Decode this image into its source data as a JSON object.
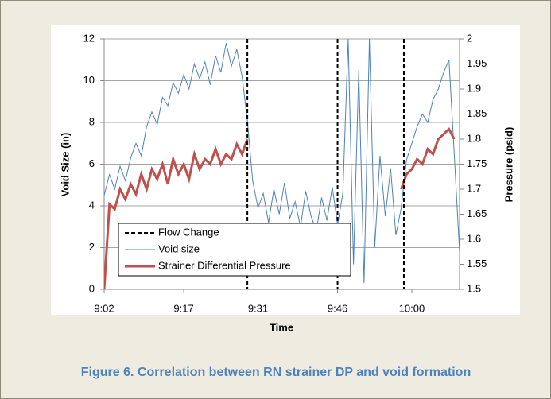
{
  "chart_data": {
    "type": "line",
    "caption": "Figure 6. Correlation between RN strainer DP and void formation",
    "x_label": "Time",
    "y_label": "Void Size (in)",
    "y2_label": "Pressure (psid)",
    "xlim": [
      542,
      609
    ],
    "xticks": [
      {
        "value": 542,
        "label": "9:02"
      },
      {
        "value": 557,
        "label": "9:17"
      },
      {
        "value": 571,
        "label": "9:31"
      },
      {
        "value": 586,
        "label": "9:46"
      },
      {
        "value": 600,
        "label": "10:00"
      }
    ],
    "ylim": [
      0,
      12
    ],
    "yticks": [
      0,
      2,
      4,
      6,
      8,
      10,
      12
    ],
    "y2lim": [
      1.5,
      2
    ],
    "y2ticks": [
      1.5,
      1.55,
      1.6,
      1.65,
      1.7,
      1.75,
      1.8,
      1.85,
      1.9,
      1.95,
      2
    ],
    "grid": true,
    "flow_change": {
      "name": "Flow Change",
      "color": "#000000",
      "x": [
        569,
        586,
        598.5
      ]
    },
    "x": [
      542,
      543,
      544,
      545,
      546,
      547,
      548,
      549,
      550,
      551,
      552,
      553,
      554,
      555,
      556,
      557,
      558,
      559,
      560,
      561,
      562,
      563,
      564,
      565,
      566,
      567,
      568,
      569,
      570,
      571,
      572,
      573,
      574,
      575,
      576,
      577,
      578,
      579,
      580,
      581,
      582,
      583,
      584,
      585,
      586,
      587,
      588,
      589,
      590,
      591,
      592,
      593,
      594,
      595,
      596,
      597,
      598,
      599,
      600,
      601,
      602,
      603,
      604,
      605,
      606,
      607,
      608,
      609
    ],
    "series": [
      {
        "name": "Void size",
        "color": "#4f81bd",
        "width": 1,
        "values": [
          4.5,
          5.5,
          4.8,
          5.9,
          5.2,
          6.3,
          7.0,
          6.4,
          7.8,
          8.5,
          7.9,
          9.2,
          8.8,
          9.9,
          9.4,
          10.3,
          9.6,
          10.8,
          10.1,
          10.9,
          9.8,
          11.2,
          10.4,
          11.8,
          10.7,
          11.5,
          10.2,
          8.1,
          5.2,
          3.9,
          4.6,
          3.2,
          4.8,
          3.6,
          5.1,
          3.4,
          4.2,
          3.0,
          4.7,
          3.5,
          2.8,
          4.4,
          3.3,
          4.9,
          3.1,
          4.6,
          12.0,
          1.2,
          10.5,
          0.3,
          12.0,
          2.0,
          6.4,
          3.5,
          5.8,
          2.6,
          3.9,
          6.2,
          7.0,
          7.8,
          8.4,
          8.0,
          9.1,
          9.6,
          10.4,
          11.0,
          6.5,
          1.8
        ]
      },
      {
        "name": "Strainer Differential Pressure",
        "color": "#c0504d",
        "width": 3,
        "axis": "y2",
        "values": [
          1.5,
          1.67,
          1.66,
          1.7,
          1.68,
          1.71,
          1.69,
          1.73,
          1.7,
          1.74,
          1.72,
          1.75,
          1.71,
          1.76,
          1.73,
          1.75,
          1.72,
          1.77,
          1.74,
          1.76,
          1.75,
          1.78,
          1.75,
          1.77,
          1.76,
          1.79,
          1.77,
          1.8,
          null,
          null,
          null,
          null,
          null,
          null,
          null,
          null,
          null,
          null,
          null,
          null,
          null,
          null,
          null,
          null,
          null,
          null,
          null,
          null,
          null,
          null,
          null,
          null,
          null,
          null,
          null,
          null,
          1.7,
          1.73,
          1.74,
          1.76,
          1.75,
          1.78,
          1.77,
          1.8,
          1.81,
          1.82,
          1.8,
          null
        ]
      }
    ]
  }
}
